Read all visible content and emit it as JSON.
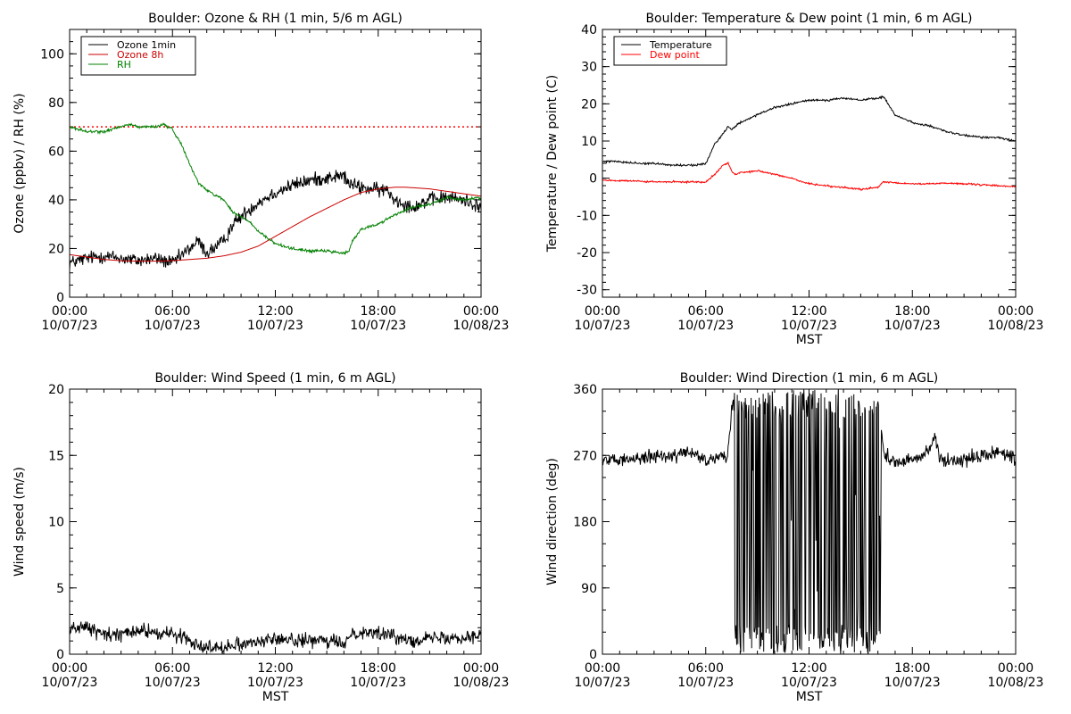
{
  "chart_data": [
    {
      "type": "line",
      "title": "Boulder: Ozone & RH (1 min, 5/6 m AGL)",
      "xlabel": "",
      "ylabel": "Ozone (ppbv) / RH (%)",
      "xlim": [
        "10/07/23 00:00",
        "10/08/23 00:00"
      ],
      "ylim": [
        0,
        110
      ],
      "y_ticks": [
        0,
        20,
        40,
        60,
        80,
        100
      ],
      "x_ticks": [
        {
          "time": "00:00",
          "date": "10/07/23"
        },
        {
          "time": "06:00",
          "date": "10/07/23"
        },
        {
          "time": "12:00",
          "date": "10/07/23"
        },
        {
          "time": "18:00",
          "date": "10/07/23"
        },
        {
          "time": "00:00",
          "date": "10/08/23"
        }
      ],
      "legend": {
        "placement": "top-left"
      },
      "reference_lines": [
        {
          "y": 70,
          "color": "#ff0000",
          "style": "dotted"
        }
      ],
      "series": [
        {
          "name": "Ozone 1min",
          "color": "#000000",
          "noise": 2.5,
          "x": [
            0,
            0.5,
            1,
            2,
            3,
            4,
            5,
            6,
            7,
            7.5,
            8,
            9,
            9.5,
            10,
            11,
            12,
            13,
            14,
            15,
            16,
            16.2,
            17,
            18,
            18.5,
            19,
            20,
            21,
            22,
            23,
            24
          ],
          "y": [
            14,
            15,
            16,
            17,
            16,
            15,
            16,
            14,
            20,
            23,
            18,
            23,
            30,
            33,
            39,
            43,
            46,
            48,
            49,
            50,
            47,
            45,
            44,
            44,
            40,
            37,
            40,
            41,
            40,
            37
          ]
        },
        {
          "name": "Ozone 8h",
          "color": "#cc0000",
          "noise": 0,
          "x": [
            0,
            1,
            2,
            3,
            4,
            5,
            6,
            7,
            8,
            9,
            10,
            11,
            12,
            13,
            14,
            15,
            16,
            17,
            18,
            19,
            19.5,
            20,
            21,
            22,
            23,
            24
          ],
          "y": [
            17.5,
            16.5,
            15.5,
            15,
            14.8,
            14.8,
            15,
            15.5,
            16,
            17,
            18.5,
            21,
            25,
            29,
            33,
            36.5,
            40,
            43,
            44.5,
            45.2,
            45.2,
            45,
            44.5,
            43.5,
            42.5,
            41.5
          ]
        },
        {
          "name": "RH",
          "color": "#008000",
          "noise": 0.5,
          "x": [
            0,
            0.5,
            1,
            2,
            3,
            3.5,
            4,
            5,
            5.5,
            6,
            6.5,
            7,
            7.5,
            8,
            9,
            9.5,
            10,
            10.5,
            11,
            12,
            13,
            14,
            15,
            16,
            16.3,
            16.5,
            17,
            18,
            19,
            20,
            21,
            22,
            23,
            24
          ],
          "y": [
            70,
            69,
            68,
            68,
            70,
            71,
            70,
            70,
            71,
            69,
            63,
            55,
            47,
            44,
            40,
            35,
            33,
            31,
            27,
            22,
            20,
            19,
            19,
            18,
            19,
            23,
            28,
            30,
            34,
            37,
            38,
            41,
            40,
            41
          ]
        }
      ]
    },
    {
      "type": "line",
      "title": "Boulder: Temperature & Dew point (1 min, 6 m AGL)",
      "xlabel": "MST",
      "ylabel": "Temperature / Dew point (C)",
      "xlim": [
        "10/07/23 00:00",
        "10/08/23 00:00"
      ],
      "ylim": [
        -32,
        40
      ],
      "y_ticks": [
        -30,
        -20,
        -10,
        0,
        10,
        20,
        30,
        40
      ],
      "x_ticks": [
        {
          "time": "00:00",
          "date": "10/07/23"
        },
        {
          "time": "06:00",
          "date": "10/07/23"
        },
        {
          "time": "12:00",
          "date": "10/07/23"
        },
        {
          "time": "18:00",
          "date": "10/07/23"
        },
        {
          "time": "00:00",
          "date": "10/08/23"
        }
      ],
      "legend": {
        "placement": "top-left"
      },
      "series": [
        {
          "name": "Temperature",
          "color": "#000000",
          "noise": 0.25,
          "x": [
            0,
            1,
            2,
            3,
            4,
            5,
            5.5,
            6,
            6.5,
            7,
            7.3,
            7.5,
            8,
            9,
            10,
            11,
            12,
            13,
            14,
            15,
            16,
            16.3,
            17,
            18,
            19,
            20,
            21,
            22,
            23,
            24
          ],
          "y": [
            4.5,
            4.5,
            4,
            4,
            3.5,
            3.5,
            3.5,
            4,
            9,
            12,
            14,
            13,
            15,
            17,
            19,
            20,
            21,
            21,
            21.5,
            21,
            21.5,
            22,
            17,
            15,
            14,
            12.5,
            11.5,
            11,
            11,
            10
          ]
        },
        {
          "name": "Dew point",
          "color": "#ff0000",
          "noise": 0.2,
          "x": [
            0,
            1,
            2,
            3,
            4,
            5,
            6,
            6.5,
            7,
            7.3,
            7.5,
            7.7,
            8,
            9,
            10,
            11,
            12,
            13,
            14,
            15,
            16,
            16.3,
            17,
            18,
            19,
            20,
            21,
            22,
            23,
            24
          ],
          "y": [
            -0.5,
            -0.7,
            -0.8,
            -1,
            -1,
            -1,
            -1,
            1,
            3.5,
            4,
            2,
            1,
            1.5,
            2,
            1,
            0,
            -1.5,
            -2,
            -2.5,
            -3,
            -2.5,
            -1,
            -1.3,
            -1.5,
            -1.5,
            -1.3,
            -1.5,
            -1.8,
            -2,
            -2.3
          ]
        }
      ]
    },
    {
      "type": "line",
      "title": "Boulder: Wind Speed (1 min, 6 m AGL)",
      "xlabel": "MST",
      "ylabel": "Wind speed (m/s)",
      "xlim": [
        "10/07/23 00:00",
        "10/08/23 00:00"
      ],
      "ylim": [
        0,
        20
      ],
      "y_ticks": [
        0,
        5,
        10,
        15,
        20
      ],
      "x_ticks": [
        {
          "time": "00:00",
          "date": "10/07/23"
        },
        {
          "time": "06:00",
          "date": "10/07/23"
        },
        {
          "time": "12:00",
          "date": "10/07/23"
        },
        {
          "time": "18:00",
          "date": "10/07/23"
        },
        {
          "time": "00:00",
          "date": "10/08/23"
        }
      ],
      "series": [
        {
          "name": "",
          "color": "#000000",
          "noise": 0.45,
          "x": [
            0,
            1,
            2,
            3,
            4,
            5,
            6,
            6.5,
            7,
            7.5,
            8,
            9,
            10,
            11,
            12,
            13,
            14,
            15,
            16,
            16.5,
            17,
            18,
            19,
            20,
            21,
            22,
            23,
            24
          ],
          "y": [
            2,
            2,
            1.5,
            1.5,
            1.8,
            1.6,
            1.5,
            1.4,
            1,
            0.8,
            0.5,
            0.6,
            0.8,
            1,
            1.1,
            1.1,
            1,
            1,
            0.8,
            1.6,
            1.7,
            1.6,
            1.3,
            1.1,
            1.2,
            1.3,
            1.3,
            1.5
          ]
        }
      ]
    },
    {
      "type": "line",
      "title": "Boulder: Wind Direction (1 min, 6 m AGL)",
      "xlabel": "MST",
      "ylabel": "Wind direction (deg)",
      "xlim": [
        "10/07/23 00:00",
        "10/08/23 00:00"
      ],
      "ylim": [
        0,
        360
      ],
      "y_ticks": [
        0,
        90,
        180,
        270,
        360
      ],
      "x_ticks": [
        {
          "time": "00:00",
          "date": "10/07/23"
        },
        {
          "time": "06:00",
          "date": "10/07/23"
        },
        {
          "time": "12:00",
          "date": "10/07/23"
        },
        {
          "time": "18:00",
          "date": "10/07/23"
        },
        {
          "time": "00:00",
          "date": "10/08/23"
        }
      ],
      "series": [
        {
          "name": "",
          "color": "#000000",
          "noise": 8,
          "x": [
            0,
            1,
            2,
            3,
            4,
            5,
            6,
            6.5,
            7,
            7.2,
            7.6,
            7.7,
            8,
            8.3,
            8.6,
            9,
            9.3,
            9.6,
            10,
            10.3,
            10.6,
            11,
            11.3,
            11.6,
            12,
            12.3,
            12.6,
            13,
            13.3,
            13.6,
            14,
            14.3,
            14.6,
            15,
            15.3,
            15.6,
            16,
            16.1,
            16.2,
            16.4,
            17,
            18,
            19,
            19.3,
            19.6,
            20,
            21,
            22,
            23,
            24
          ],
          "y": [
            265,
            262,
            268,
            270,
            268,
            275,
            262,
            265,
            270,
            260,
            350,
            20,
            340,
            15,
            350,
            10,
            345,
            25,
            340,
            5,
            350,
            30,
            340,
            20,
            355,
            15,
            345,
            30,
            350,
            10,
            340,
            20,
            345,
            25,
            350,
            15,
            355,
            5,
            300,
            270,
            262,
            265,
            275,
            300,
            265,
            262,
            265,
            270,
            275,
            265
          ]
        }
      ]
    }
  ]
}
